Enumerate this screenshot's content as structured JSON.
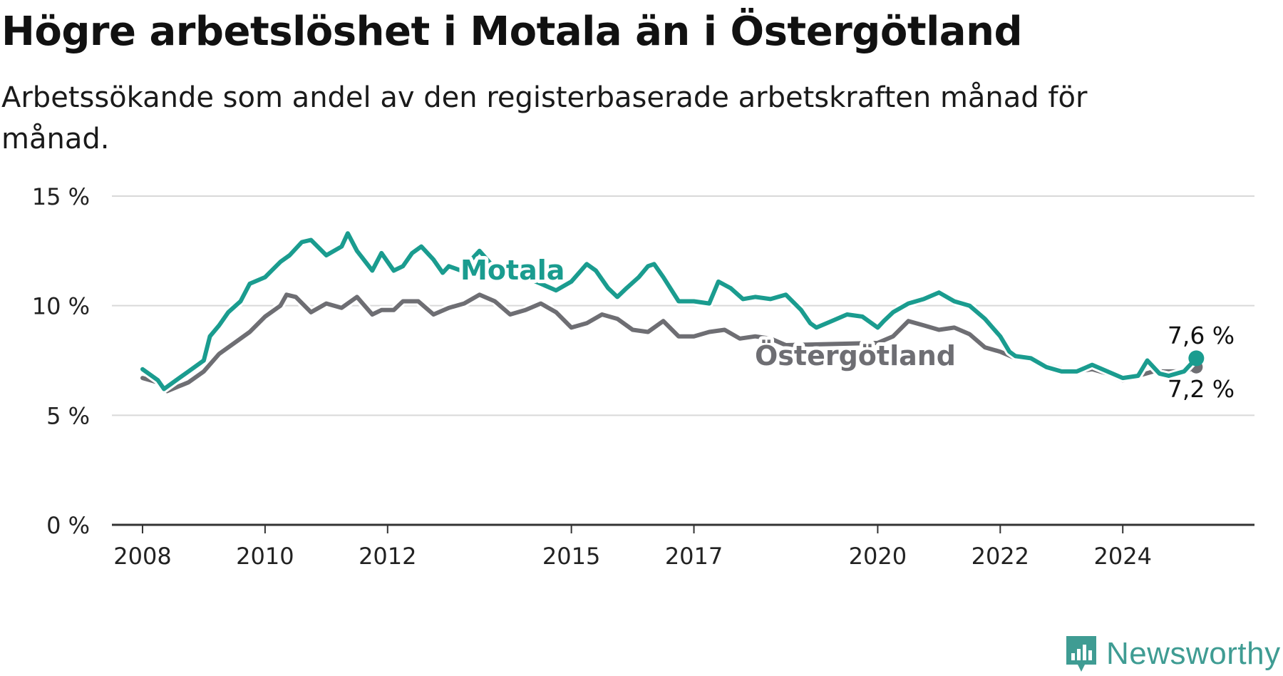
{
  "title": "Högre arbetslöshet i Motala än i Östergötland",
  "subtitle": "Arbetssökande som andel av den registerbaserade arbetskraften månad för månad.",
  "brand": {
    "name": "Newsworthy",
    "icon": "newsworthy-logo-icon",
    "color": "#3f9c93"
  },
  "chart_data": {
    "type": "line",
    "title": "Högre arbetslöshet i Motala än i Östergötland",
    "subtitle": "Arbetssökande som andel av den registerbaserade arbetskraften månad för månad.",
    "xlabel": "",
    "ylabel": "",
    "ylim": [
      0,
      15
    ],
    "y_ticks": [
      0,
      5,
      10,
      15
    ],
    "y_tick_labels": [
      "0 %",
      "5 %",
      "10 %",
      "15 %"
    ],
    "x_ticks": [
      2008,
      2010,
      2012,
      2015,
      2017,
      2020,
      2022,
      2024
    ],
    "x_tick_labels": [
      "2008",
      "2010",
      "2012",
      "2015",
      "2017",
      "2020",
      "2022",
      "2024"
    ],
    "grid": true,
    "legend": "inline labels",
    "series": [
      {
        "name": "Motala",
        "color": "#1a9c8f",
        "end_label": "7,6 %",
        "points": [
          [
            2008.0,
            7.1
          ],
          [
            2008.25,
            6.6
          ],
          [
            2008.35,
            6.2
          ],
          [
            2008.5,
            6.5
          ],
          [
            2008.75,
            7.0
          ],
          [
            2009.0,
            7.5
          ],
          [
            2009.1,
            8.6
          ],
          [
            2009.25,
            9.1
          ],
          [
            2009.4,
            9.7
          ],
          [
            2009.6,
            10.2
          ],
          [
            2009.75,
            11.0
          ],
          [
            2010.0,
            11.3
          ],
          [
            2010.25,
            12.0
          ],
          [
            2010.4,
            12.3
          ],
          [
            2010.6,
            12.9
          ],
          [
            2010.75,
            13.0
          ],
          [
            2011.0,
            12.3
          ],
          [
            2011.25,
            12.7
          ],
          [
            2011.35,
            13.3
          ],
          [
            2011.5,
            12.5
          ],
          [
            2011.75,
            11.6
          ],
          [
            2011.9,
            12.4
          ],
          [
            2012.1,
            11.6
          ],
          [
            2012.25,
            11.8
          ],
          [
            2012.4,
            12.4
          ],
          [
            2012.55,
            12.7
          ],
          [
            2012.75,
            12.1
          ],
          [
            2012.9,
            11.5
          ],
          [
            2013.0,
            11.8
          ],
          [
            2013.2,
            11.6
          ],
          [
            2013.5,
            12.5
          ],
          [
            2013.75,
            11.7
          ],
          [
            2014.0,
            11.5
          ],
          [
            2014.25,
            11.3
          ],
          [
            2014.5,
            11.0
          ],
          [
            2014.75,
            10.7
          ],
          [
            2015.0,
            11.1
          ],
          [
            2015.25,
            11.9
          ],
          [
            2015.4,
            11.6
          ],
          [
            2015.6,
            10.8
          ],
          [
            2015.75,
            10.4
          ],
          [
            2015.9,
            10.8
          ],
          [
            2016.1,
            11.3
          ],
          [
            2016.25,
            11.8
          ],
          [
            2016.35,
            11.9
          ],
          [
            2016.5,
            11.3
          ],
          [
            2016.75,
            10.2
          ],
          [
            2017.0,
            10.2
          ],
          [
            2017.25,
            10.1
          ],
          [
            2017.4,
            11.1
          ],
          [
            2017.6,
            10.8
          ],
          [
            2017.8,
            10.3
          ],
          [
            2018.0,
            10.4
          ],
          [
            2018.25,
            10.3
          ],
          [
            2018.5,
            10.5
          ],
          [
            2018.75,
            9.8
          ],
          [
            2018.9,
            9.2
          ],
          [
            2019.0,
            9.0
          ],
          [
            2019.25,
            9.3
          ],
          [
            2019.5,
            9.6
          ],
          [
            2019.75,
            9.5
          ],
          [
            2020.0,
            9.0
          ],
          [
            2020.1,
            9.3
          ],
          [
            2020.25,
            9.7
          ],
          [
            2020.5,
            10.1
          ],
          [
            2020.75,
            10.3
          ],
          [
            2021.0,
            10.6
          ],
          [
            2021.25,
            10.2
          ],
          [
            2021.5,
            10.0
          ],
          [
            2021.75,
            9.4
          ],
          [
            2022.0,
            8.6
          ],
          [
            2022.15,
            7.9
          ],
          [
            2022.25,
            7.7
          ],
          [
            2022.5,
            7.6
          ],
          [
            2022.75,
            7.2
          ],
          [
            2023.0,
            7.0
          ],
          [
            2023.25,
            7.0
          ],
          [
            2023.5,
            7.3
          ],
          [
            2023.75,
            7.0
          ],
          [
            2024.0,
            6.7
          ],
          [
            2024.25,
            6.8
          ],
          [
            2024.4,
            7.5
          ],
          [
            2024.6,
            6.9
          ],
          [
            2024.75,
            6.8
          ],
          [
            2025.0,
            7.0
          ],
          [
            2025.2,
            7.6
          ]
        ]
      },
      {
        "name": "Östergötland",
        "color": "#6e6e73",
        "end_label": "7,2 %",
        "points": [
          [
            2008.0,
            6.7
          ],
          [
            2008.25,
            6.5
          ],
          [
            2008.4,
            6.1
          ],
          [
            2008.75,
            6.5
          ],
          [
            2009.0,
            7.0
          ],
          [
            2009.25,
            7.8
          ],
          [
            2009.5,
            8.3
          ],
          [
            2009.75,
            8.8
          ],
          [
            2010.0,
            9.5
          ],
          [
            2010.25,
            10.0
          ],
          [
            2010.35,
            10.5
          ],
          [
            2010.5,
            10.4
          ],
          [
            2010.75,
            9.7
          ],
          [
            2011.0,
            10.1
          ],
          [
            2011.25,
            9.9
          ],
          [
            2011.5,
            10.4
          ],
          [
            2011.75,
            9.6
          ],
          [
            2011.9,
            9.8
          ],
          [
            2012.1,
            9.8
          ],
          [
            2012.25,
            10.2
          ],
          [
            2012.5,
            10.2
          ],
          [
            2012.75,
            9.6
          ],
          [
            2013.0,
            9.9
          ],
          [
            2013.25,
            10.1
          ],
          [
            2013.5,
            10.5
          ],
          [
            2013.75,
            10.2
          ],
          [
            2014.0,
            9.6
          ],
          [
            2014.25,
            9.8
          ],
          [
            2014.5,
            10.1
          ],
          [
            2014.75,
            9.7
          ],
          [
            2015.0,
            9.0
          ],
          [
            2015.25,
            9.2
          ],
          [
            2015.5,
            9.6
          ],
          [
            2015.75,
            9.4
          ],
          [
            2016.0,
            8.9
          ],
          [
            2016.25,
            8.8
          ],
          [
            2016.5,
            9.3
          ],
          [
            2016.75,
            8.6
          ],
          [
            2017.0,
            8.6
          ],
          [
            2017.25,
            8.8
          ],
          [
            2017.5,
            8.9
          ],
          [
            2017.75,
            8.5
          ],
          [
            2018.0,
            8.6
          ],
          [
            2018.25,
            8.5
          ],
          [
            2018.5,
            8.2
          ],
          [
            2020.0,
            8.3
          ],
          [
            2020.25,
            8.6
          ],
          [
            2020.5,
            9.3
          ],
          [
            2020.75,
            9.1
          ],
          [
            2021.0,
            8.9
          ],
          [
            2021.25,
            9.0
          ],
          [
            2021.5,
            8.7
          ],
          [
            2021.75,
            8.1
          ],
          [
            2022.0,
            7.9
          ],
          [
            2022.25,
            7.6
          ],
          [
            2022.5,
            7.6
          ],
          [
            2022.75,
            7.3
          ],
          [
            2023.0,
            7.1
          ],
          [
            2023.25,
            7.0
          ],
          [
            2023.5,
            7.1
          ],
          [
            2023.75,
            6.9
          ],
          [
            2024.0,
            6.6
          ],
          [
            2024.25,
            6.8
          ],
          [
            2024.5,
            7.0
          ],
          [
            2024.75,
            7.0
          ],
          [
            2025.0,
            7.0
          ],
          [
            2025.2,
            7.2
          ]
        ]
      }
    ]
  }
}
